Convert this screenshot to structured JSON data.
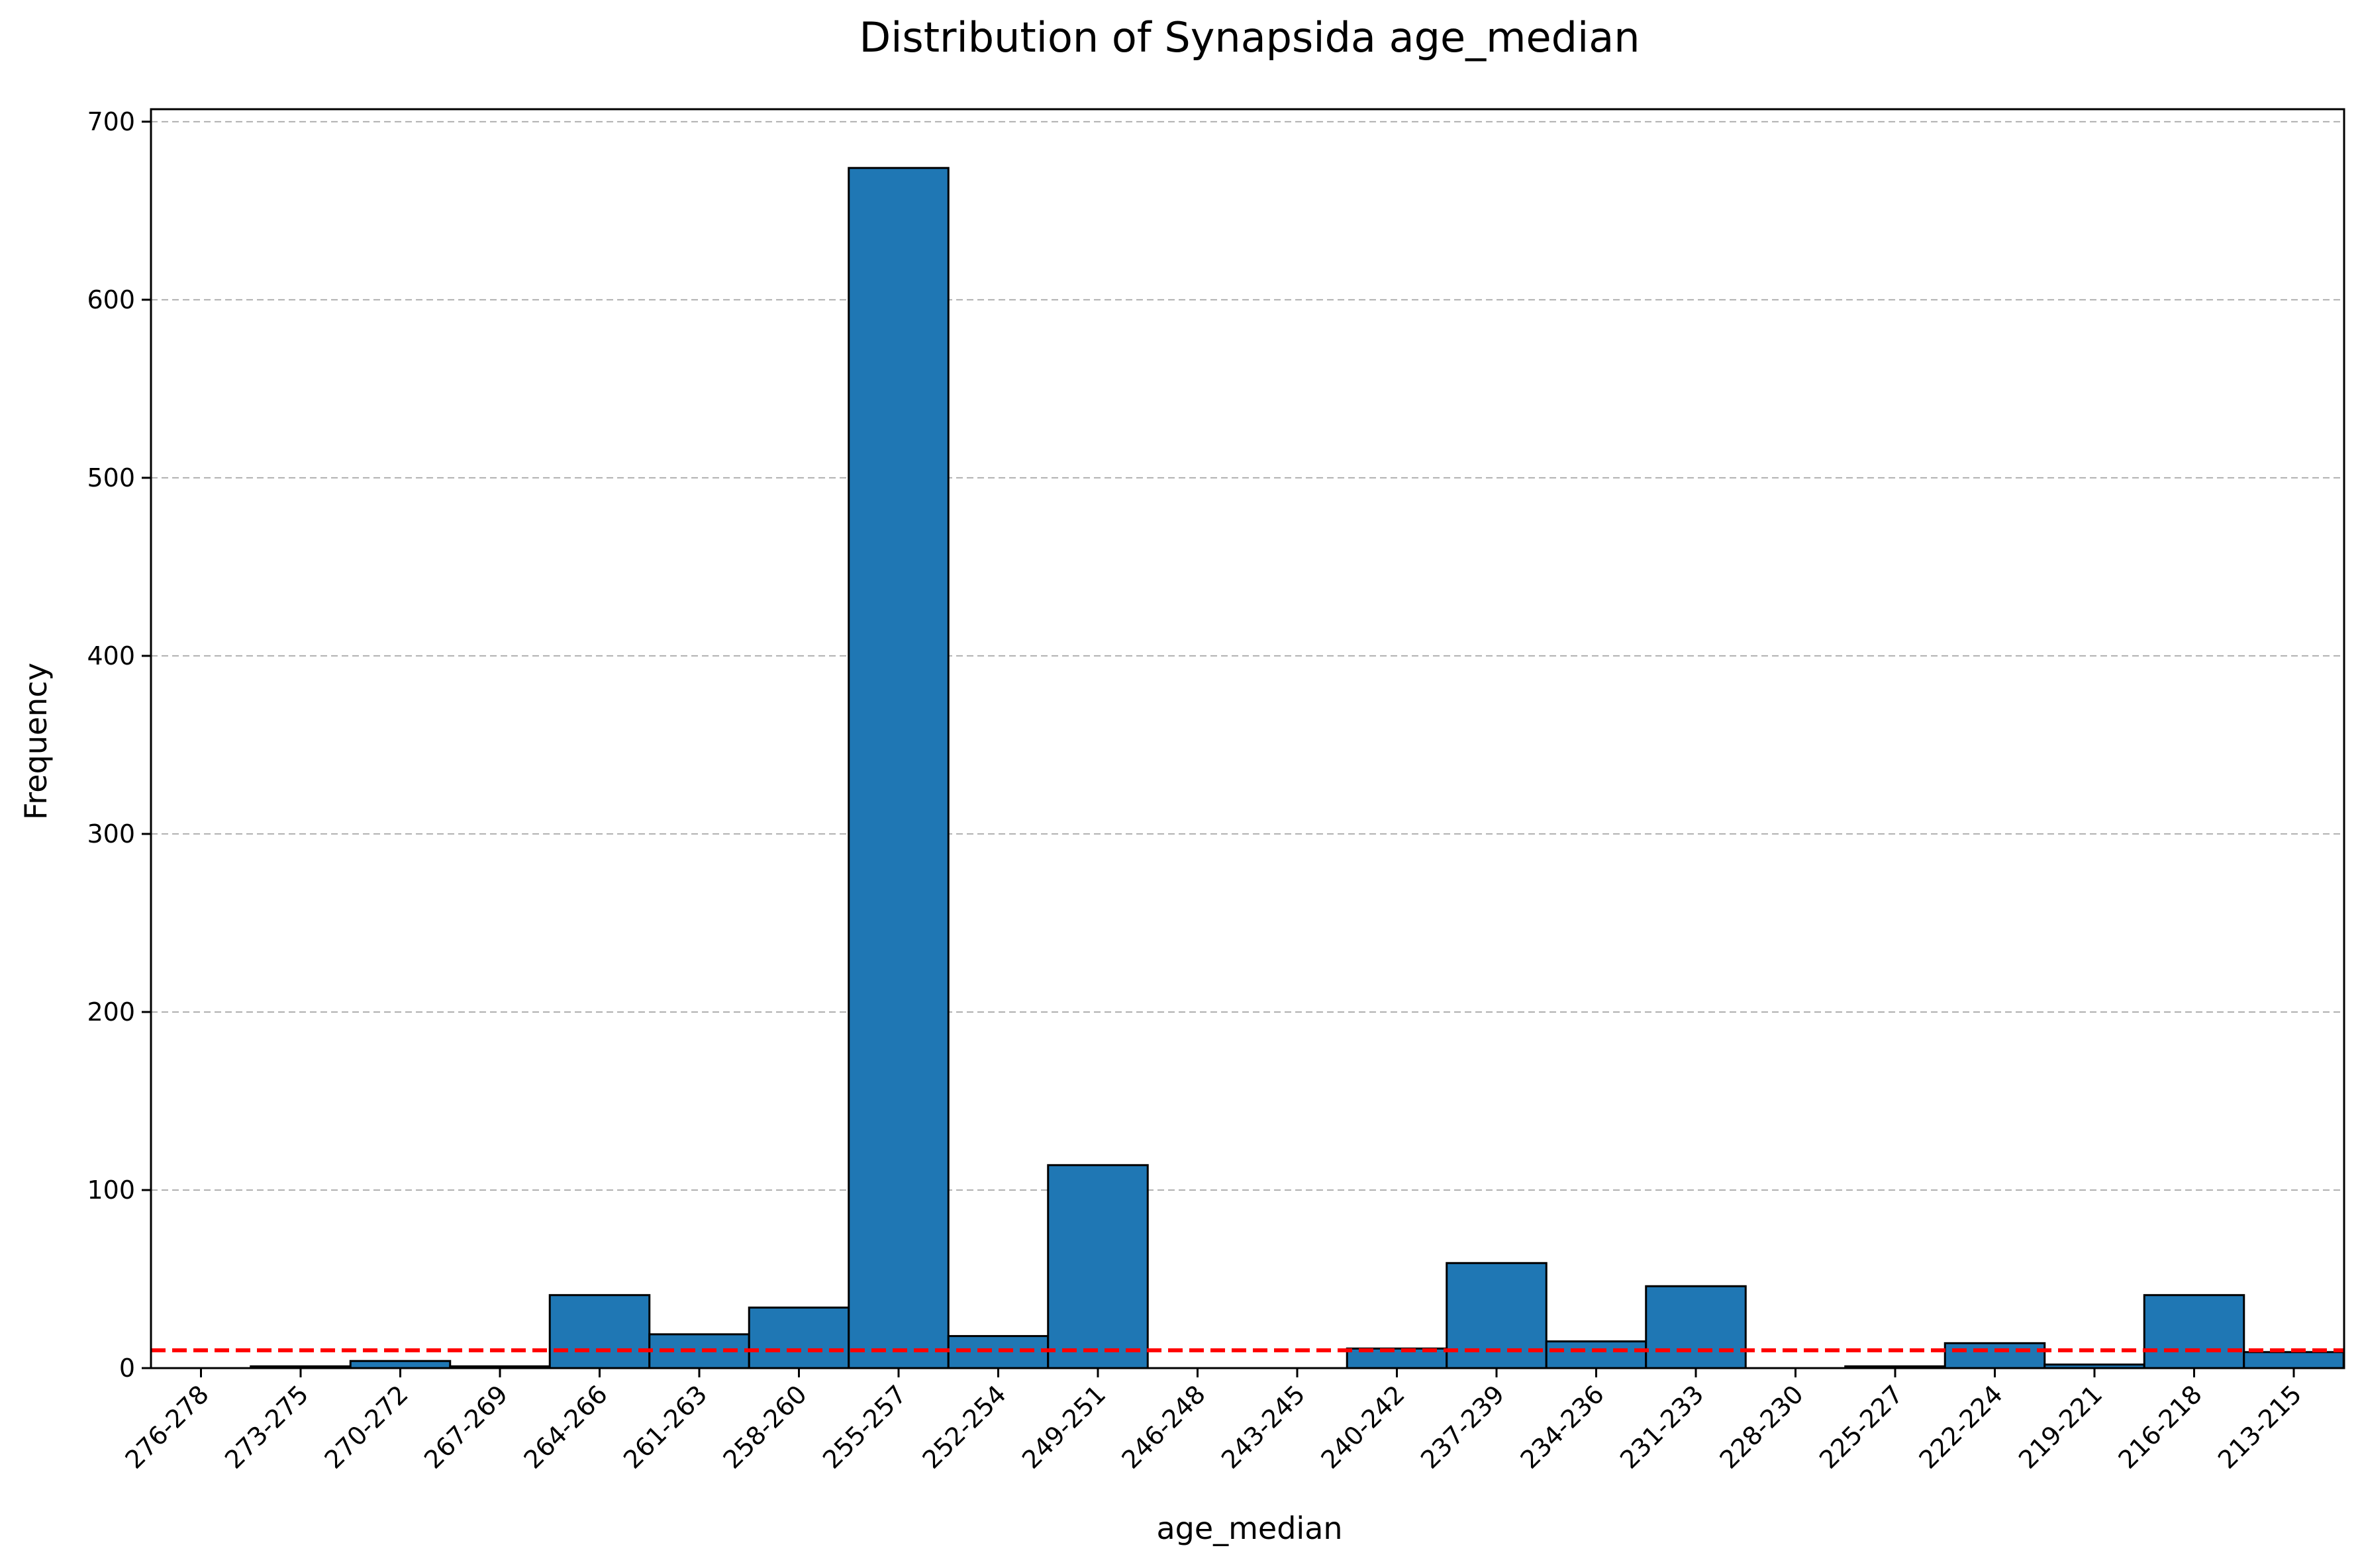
{
  "chart_data": {
    "type": "bar",
    "title": "Distribution of Synapsida age_median",
    "xlabel": "age_median",
    "ylabel": "Frequency",
    "categories": [
      "276-278",
      "273-275",
      "270-272",
      "267-269",
      "264-266",
      "261-263",
      "258-260",
      "255-257",
      "252-254",
      "249-251",
      "246-248",
      "243-245",
      "240-242",
      "237-239",
      "234-236",
      "231-233",
      "228-230",
      "225-227",
      "222-224",
      "219-221",
      "216-218",
      "213-215"
    ],
    "values": [
      0,
      1,
      4,
      1,
      41,
      19,
      34,
      674,
      18,
      114,
      0,
      0,
      11,
      59,
      15,
      46,
      0,
      1,
      14,
      2,
      41,
      9
    ],
    "ylim": [
      0,
      707
    ],
    "yticks": [
      0,
      100,
      200,
      300,
      400,
      500,
      600,
      700
    ],
    "reference_line": {
      "value": 10,
      "style": "dashed",
      "color": "#ff0000"
    },
    "grid": {
      "y": true,
      "x": false,
      "style": "dashed"
    },
    "bar_color": "#1f77b4",
    "bar_edge_color": "#000000"
  }
}
